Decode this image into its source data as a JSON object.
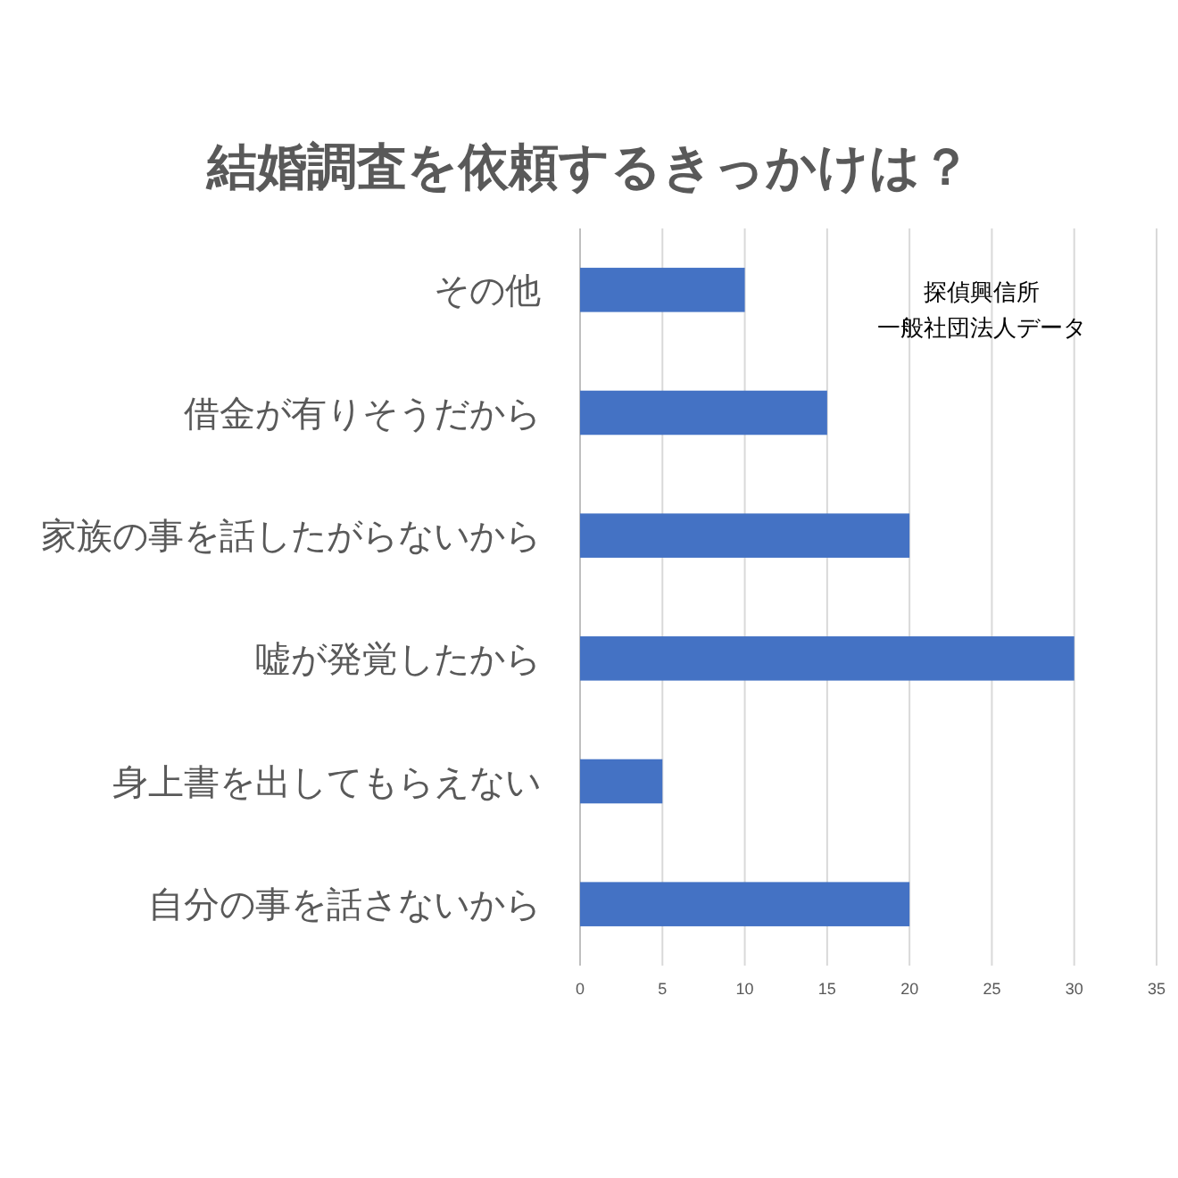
{
  "chart_data": {
    "type": "bar",
    "orientation": "horizontal",
    "title": "結婚調査を依頼するきっかけは？",
    "categories": [
      "その他",
      "借金が有りそうだから",
      "家族の事を話したがらないから",
      "嘘が発覚したから",
      "身上書を出してもらえない",
      "自分の事を話さないから"
    ],
    "values": [
      10,
      15,
      20,
      30,
      5,
      20
    ],
    "color": "#4472c4",
    "xlim": [
      0,
      35
    ],
    "xticks": [
      0,
      5,
      10,
      15,
      20,
      25,
      30,
      35
    ],
    "grid": "x",
    "annotations": [
      "探偵興信所",
      "一般社団法人データ"
    ]
  }
}
